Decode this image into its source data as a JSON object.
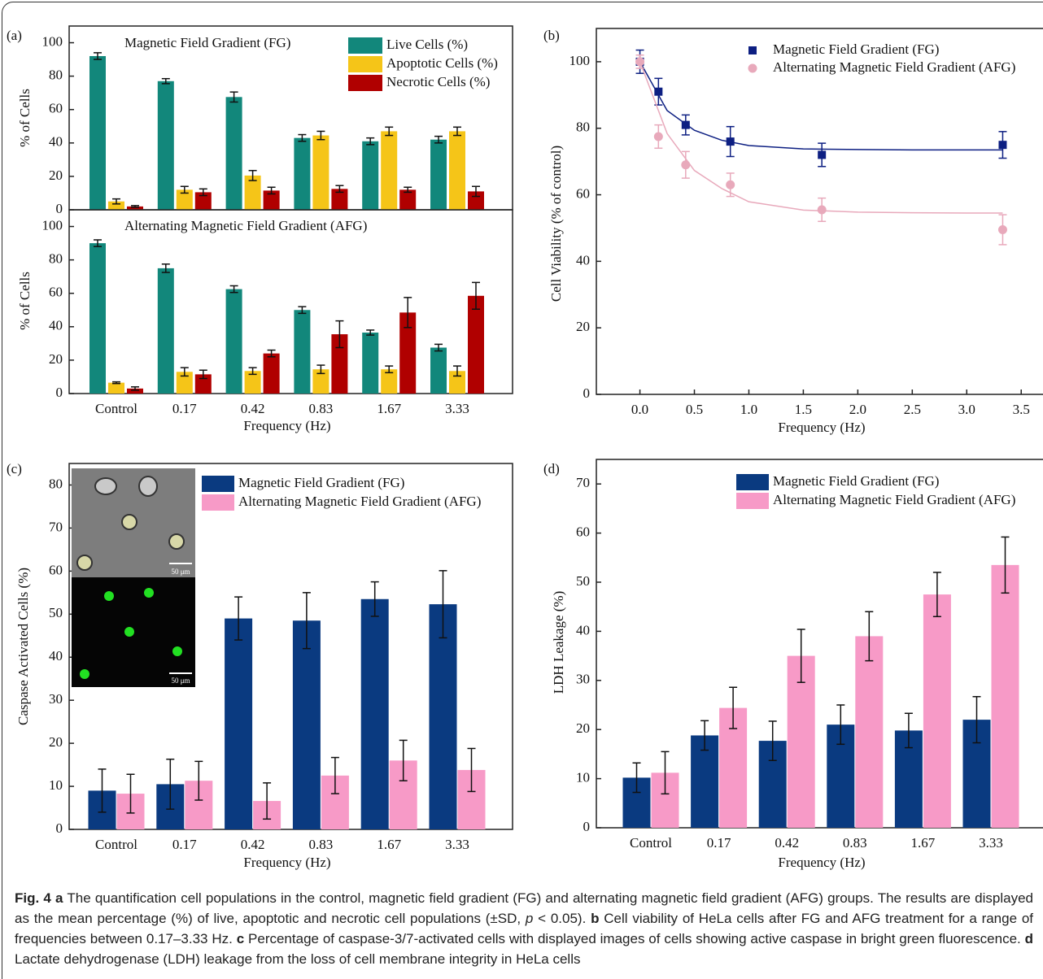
{
  "chart_data": [
    {
      "type": "bar",
      "panel_label": "(a)",
      "title": "Magnetic Field Gradient (FG)",
      "y_label": "% of Cells",
      "categories": [
        null,
        null,
        null,
        null,
        null,
        null
      ],
      "ylim": [
        0,
        110
      ],
      "yticks": [
        0,
        20,
        40,
        60,
        80,
        100
      ],
      "legend": "upper right",
      "series": [
        {
          "name": "Live Cells (%)",
          "color": "#12877b",
          "values": [
            92,
            77,
            67.5,
            43,
            41,
            42
          ],
          "errors": [
            2,
            1.5,
            3,
            2,
            2,
            2
          ]
        },
        {
          "name": "Apoptotic Cells (%)",
          "color": "#f5c518",
          "values": [
            5,
            12,
            20.5,
            44.5,
            47,
            47
          ],
          "errors": [
            1.5,
            2,
            3,
            2.5,
            2.5,
            2.5
          ]
        },
        {
          "name": "Necrotic Cells (%)",
          "color": "#b00000",
          "values": [
            2,
            10.5,
            11.5,
            12.5,
            12,
            11
          ],
          "errors": [
            0.5,
            2,
            2,
            2,
            1.5,
            3
          ]
        }
      ]
    },
    {
      "type": "bar",
      "title": "Alternating Magnetic Field Gradient (AFG)",
      "y_label": "% of Cells",
      "x_label": "Frequency (Hz)",
      "categories": [
        "Control",
        "0.17",
        "0.42",
        "0.83",
        "1.67",
        "3.33"
      ],
      "ylim": [
        0,
        110
      ],
      "yticks": [
        0,
        20,
        40,
        60,
        80,
        100
      ],
      "series": [
        {
          "color": "#12877b",
          "values": [
            90,
            75,
            62.5,
            50,
            36.5,
            27.5
          ],
          "errors": [
            2,
            2.5,
            2,
            2,
            1.5,
            2
          ]
        },
        {
          "color": "#f5c518",
          "values": [
            6.5,
            13,
            13.5,
            14.5,
            14.5,
            13.5
          ],
          "errors": [
            0.5,
            2.5,
            2,
            2.5,
            2,
            3
          ]
        },
        {
          "color": "#b00000",
          "values": [
            3,
            11.5,
            24,
            35.5,
            48.5,
            58.5
          ],
          "errors": [
            1,
            2.5,
            2,
            8,
            9,
            8
          ]
        }
      ]
    },
    {
      "type": "scatter",
      "panel_label": "(b)",
      "x_label": "Frequency (Hz)",
      "y_label": "Cell Viability (% of control)",
      "xlim": [
        -0.4,
        3.7
      ],
      "xticks": [
        {
          "value": 0,
          "label": "0.0"
        },
        {
          "value": 0.5,
          "label": "0.5"
        },
        {
          "value": 1,
          "label": "1.0"
        },
        {
          "value": 1.5,
          "label": "1.5"
        },
        {
          "value": 2,
          "label": "2.0"
        },
        {
          "value": 2.5,
          "label": "2.5"
        },
        {
          "value": 3,
          "label": "3.0"
        },
        {
          "value": 3.5,
          "label": "3.5"
        }
      ],
      "ylim": [
        0,
        110
      ],
      "yticks": [
        0,
        20,
        40,
        60,
        80,
        100
      ],
      "legend": "upper right",
      "x": [
        0,
        0.17,
        0.42,
        0.83,
        1.67,
        3.33
      ],
      "series": [
        {
          "name": "Magnetic Field Gradient (FG)",
          "color": "#0d1f82",
          "marker": "square",
          "values": [
            100,
            91,
            81,
            76,
            72,
            75
          ],
          "errors": [
            3.5,
            4,
            3,
            4.5,
            3.5,
            4
          ],
          "fit": {
            "x": [
              0,
              0.25,
              0.5,
              0.75,
              1,
              1.5,
              2,
              2.5,
              3,
              3.33
            ],
            "values": [
              100,
              85.3,
              79.4,
              76.4,
              74.8,
              73.8,
              73.6,
              73.5,
              73.5,
              73.5
            ]
          }
        },
        {
          "name": "Alternating Magnetic Field Gradient (AFG)",
          "color": "#e8a9bb",
          "marker": "circle",
          "values": [
            100,
            77.5,
            69,
            63,
            55.5,
            49.5
          ],
          "errors": [
            2,
            3.5,
            4,
            3.5,
            3.5,
            4.5
          ],
          "fit": {
            "x": [
              0,
              0.25,
              0.5,
              0.75,
              1,
              1.5,
              2,
              2.5,
              3,
              3.33
            ],
            "values": [
              100,
              78.4,
              67.3,
              61.9,
              57.9,
              55.4,
              54.8,
              54.6,
              54.5,
              54.5
            ]
          }
        }
      ]
    },
    {
      "type": "bar",
      "panel_label": "(c)",
      "x_label": "Frequency (Hz)",
      "y_label": "Caspase Activated Cells (%)",
      "categories": [
        "Control",
        "0.17",
        "0.42",
        "0.83",
        "1.67",
        "3.33"
      ],
      "ylim": [
        0,
        85
      ],
      "yticks": [
        0,
        10,
        20,
        30,
        40,
        50,
        60,
        70,
        80
      ],
      "legend": "upper right",
      "series": [
        {
          "name": "Magnetic Field Gradient (FG)",
          "color": "#0a3a80",
          "values": [
            9,
            10.5,
            49,
            48.5,
            53.5,
            52.3
          ],
          "errors": [
            5,
            5.8,
            5,
            6.5,
            4,
            7.8
          ]
        },
        {
          "name": "Alternating Magnetic Field Gradient (AFG)",
          "color": "#f79ac7",
          "values": [
            8.3,
            11.3,
            6.6,
            12.5,
            16,
            13.8
          ],
          "errors": [
            4.5,
            4.5,
            4.2,
            4.2,
            4.7,
            5
          ]
        }
      ]
    },
    {
      "type": "bar",
      "panel_label": "(d)",
      "x_label": "Frequency (Hz)",
      "y_label": "LDH Leakage (%)",
      "categories": [
        "Control",
        "0.17",
        "0.42",
        "0.83",
        "1.67",
        "3.33"
      ],
      "ylim": [
        0,
        75
      ],
      "yticks": [
        0,
        10,
        20,
        30,
        40,
        50,
        60,
        70
      ],
      "legend": "upper right",
      "series": [
        {
          "name": "Magnetic Field Gradient (FG)",
          "color": "#0a3a80",
          "values": [
            10.2,
            18.8,
            17.7,
            21,
            19.8,
            22
          ],
          "errors": [
            3,
            3,
            4,
            4,
            3.5,
            4.7
          ]
        },
        {
          "name": "Alternating Magnetic Field Gradient (AFG)",
          "color": "#f79ac7",
          "values": [
            11.2,
            24.4,
            35,
            39,
            47.5,
            53.5
          ],
          "errors": [
            4.3,
            4.2,
            5.4,
            5,
            4.5,
            5.7
          ]
        }
      ]
    }
  ],
  "inset": {
    "scale_label": "50 μm"
  },
  "caption": {
    "parts": [
      {
        "text": "Fig. 4 a",
        "bold": true
      },
      {
        "text": " The quantification cell populations in the control, magnetic field gradient (FG) and alternating magnetic field gradient (AFG) groups. The results are displayed as the mean percentage (%) of live, apoptotic and necrotic cell populations (±SD, "
      },
      {
        "text": "p",
        "italic": true
      },
      {
        "text": " < 0.05). "
      },
      {
        "text": "b",
        "bold": true
      },
      {
        "text": " Cell viability of HeLa cells after FG and AFG treatment for a range of frequencies between 0.17–3.33 Hz. "
      },
      {
        "text": "c",
        "bold": true
      },
      {
        "text": " Percentage of caspase-3/7-activated cells with displayed images of cells showing active caspase in bright green fluorescence. "
      },
      {
        "text": "d",
        "bold": true
      },
      {
        "text": " Lactate dehydrogenase (LDH) leakage from the loss of cell membrane integrity in HeLa cells"
      }
    ]
  }
}
